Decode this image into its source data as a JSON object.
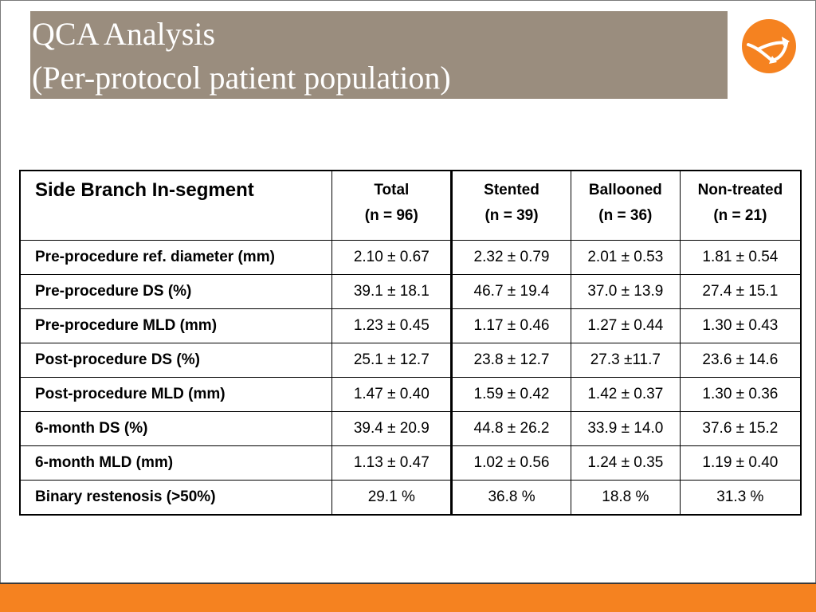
{
  "slide": {
    "title_line1": "QCA Analysis",
    "title_line2": "(Per-protocol patient population)",
    "colors": {
      "title_band": "#9a8d7e",
      "accent": "#f58220",
      "text": "#000000"
    },
    "logo_icon": "orange-circle-arrow-logo"
  },
  "table": {
    "header": {
      "rowhead": "Side Branch In-segment",
      "columns": [
        {
          "name": "Total",
          "n": "(n = 96)"
        },
        {
          "name": "Stented",
          "n": "(n = 39)"
        },
        {
          "name": "Ballooned",
          "n": "(n = 36)"
        },
        {
          "name": "Non-treated",
          "n": "(n = 21)"
        }
      ]
    },
    "rows": [
      {
        "label": "Pre-procedure ref. diameter (mm)",
        "values": [
          "2.10 ± 0.67",
          "2.32 ± 0.79",
          "2.01 ± 0.53",
          "1.81 ± 0.54"
        ]
      },
      {
        "label": "Pre-procedure DS (%)",
        "values": [
          "39.1 ± 18.1",
          "46.7 ± 19.4",
          "37.0 ± 13.9",
          "27.4 ± 15.1"
        ]
      },
      {
        "label": "Pre-procedure MLD (mm)",
        "values": [
          "1.23 ± 0.45",
          "1.17 ± 0.46",
          "1.27 ± 0.44",
          "1.30 ± 0.43"
        ]
      },
      {
        "label": "Post-procedure DS (%)",
        "values": [
          "25.1 ± 12.7",
          "23.8 ± 12.7",
          "27.3 ±11.7",
          "23.6 ± 14.6"
        ]
      },
      {
        "label": "Post-procedure MLD (mm)",
        "values": [
          "1.47 ± 0.40",
          "1.59 ± 0.42",
          "1.42 ± 0.37",
          "1.30 ± 0.36"
        ]
      },
      {
        "label": "6-month DS (%)",
        "values": [
          "39.4 ± 20.9",
          "44.8 ± 26.2",
          "33.9 ± 14.0",
          "37.6 ± 15.2"
        ]
      },
      {
        "label": "6-month MLD (mm)",
        "values": [
          "1.13 ± 0.47",
          "1.02 ± 0.56",
          "1.24 ± 0.35",
          "1.19 ± 0.40"
        ]
      },
      {
        "label": "Binary restenosis (>50%)",
        "values": [
          "29.1 %",
          "36.8 %",
          "18.8 %",
          "31.3 %"
        ]
      }
    ]
  }
}
